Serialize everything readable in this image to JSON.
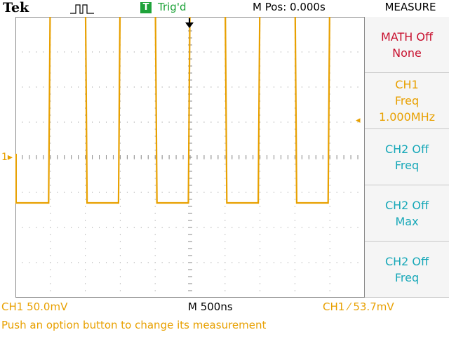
{
  "header": {
    "brand": "Tek",
    "acquisition_icon": "square-pulse-icon",
    "trigger_badge": "T",
    "trigger_status": "Trig'd",
    "horizontal_position": "M Pos: 0.000s",
    "menu_title": "MEASURE"
  },
  "side_menu": [
    {
      "line1": "MATH Off",
      "line2": "None",
      "line3": ""
    },
    {
      "line1": "CH1",
      "line2": "Freq",
      "line3": "1.000MHz"
    },
    {
      "line1": "CH2 Off",
      "line2": "Freq",
      "line3": ""
    },
    {
      "line1": "CH2 Off",
      "line2": "Max",
      "line3": ""
    },
    {
      "line1": "CH2 Off",
      "line2": "Freq",
      "line3": ""
    }
  ],
  "footer": {
    "ch1_scale": "CH1  50.0mV",
    "time_scale": "M 500ns",
    "trigger_level": "CH1 ⁄ 53.7mV",
    "message": "Push an option button to change its measurement"
  },
  "markers": {
    "ch1_ground": "1▸",
    "trigger_level_arrow": "◂"
  },
  "colors": {
    "ch1": "#e8a000",
    "ch2": "#17a8b8",
    "math": "#c8102e",
    "trigger_green": "#1fa33a",
    "grid": "#8a8a8a"
  },
  "chart_data": {
    "type": "line",
    "title": "",
    "xlabel": "",
    "ylabel": "",
    "grid": true,
    "divisions": {
      "x": 10,
      "y": 8
    },
    "series": [
      {
        "name": "CH1",
        "shape": "square",
        "frequency_mhz": 1.0,
        "high_div": 5.0,
        "low_div": -1.3,
        "x_div": [
          0,
          0.05,
          0.95,
          1.0,
          2.0,
          2.05,
          2.95,
          3.0,
          4.0,
          4.05,
          4.95,
          5.0,
          6.0,
          6.05,
          6.95,
          7.0,
          8.0,
          8.05,
          8.95,
          9.0,
          10.0
        ],
        "y_div": [
          -1.3,
          -1.3,
          -1.3,
          5.0,
          5.0,
          -1.3,
          -1.3,
          5.0,
          5.0,
          -1.3,
          -1.3,
          5.0,
          5.0,
          -1.3,
          -1.3,
          5.0,
          5.0,
          -1.3,
          -1.3,
          5.0,
          5.0
        ]
      }
    ]
  }
}
